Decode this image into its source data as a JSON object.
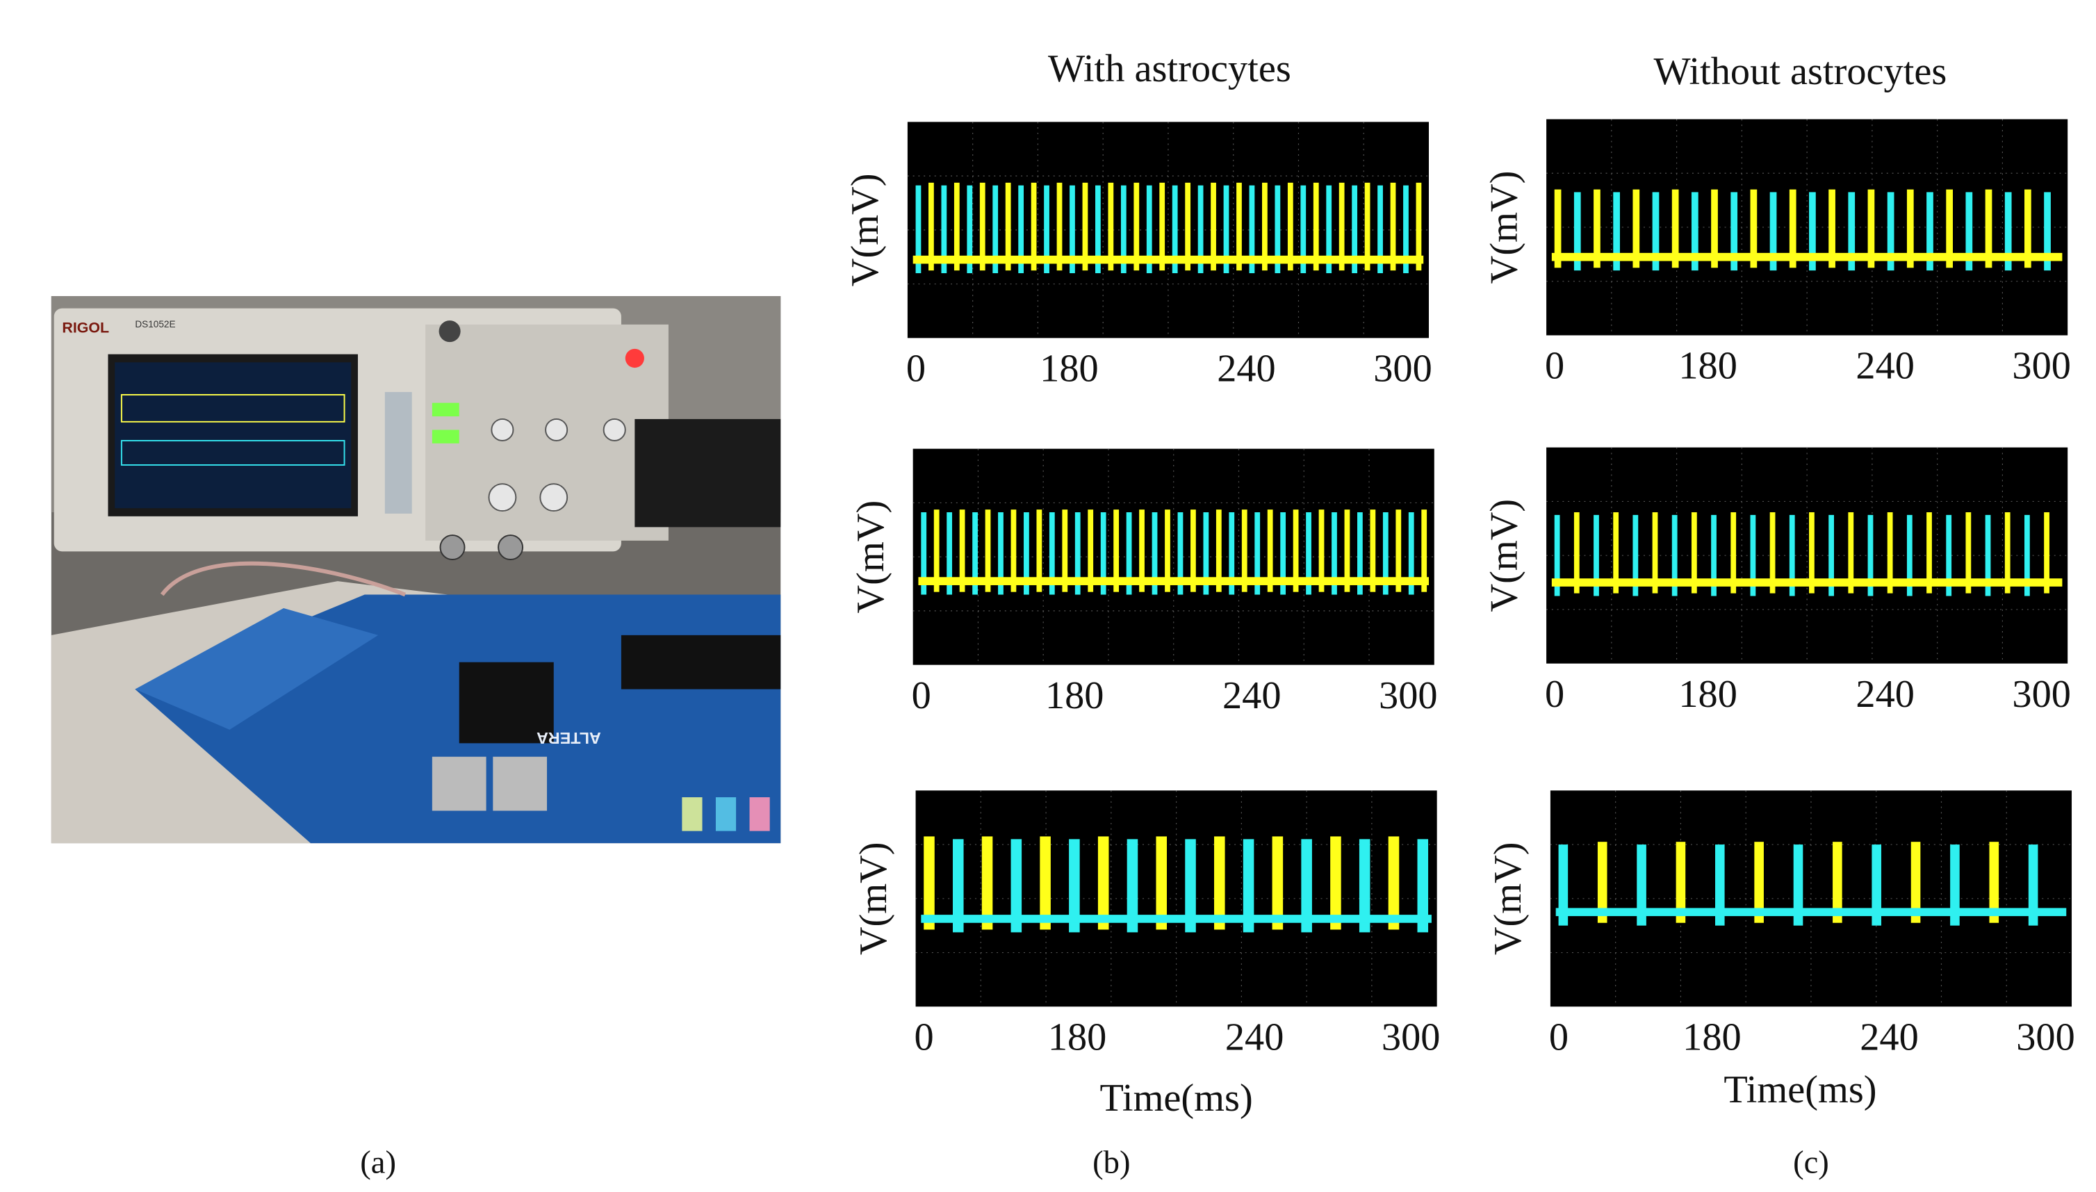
{
  "figure": {
    "photo": {
      "texts": [
        "RIGOL",
        "DS1052E",
        "ALTERA"
      ],
      "label": "(a)"
    },
    "columns": [
      {
        "title": "With astrocytes",
        "label": "(b)",
        "x_label": "Time(ms)",
        "plots": [
          {
            "y_label": "V(mV)",
            "x_ticks": [
              "0",
              "180",
              "240",
              "300"
            ]
          },
          {
            "y_label": "V(mV)",
            "x_ticks": [
              "0",
              "180",
              "240",
              "300"
            ]
          },
          {
            "y_label": "V(mV)",
            "x_ticks": [
              "0",
              "180",
              "240",
              "300"
            ]
          }
        ]
      },
      {
        "title": "Without astrocytes",
        "label": "(c)",
        "x_label": "Time(ms)",
        "plots": [
          {
            "y_label": "V(mV)",
            "x_ticks": [
              "0",
              "180",
              "240",
              "300"
            ]
          },
          {
            "y_label": "V(mV)",
            "x_ticks": [
              "0",
              "180",
              "240",
              "300"
            ]
          },
          {
            "y_label": "V(mV)",
            "x_ticks": [
              "0",
              "180",
              "240",
              "300"
            ]
          }
        ]
      }
    ]
  }
}
